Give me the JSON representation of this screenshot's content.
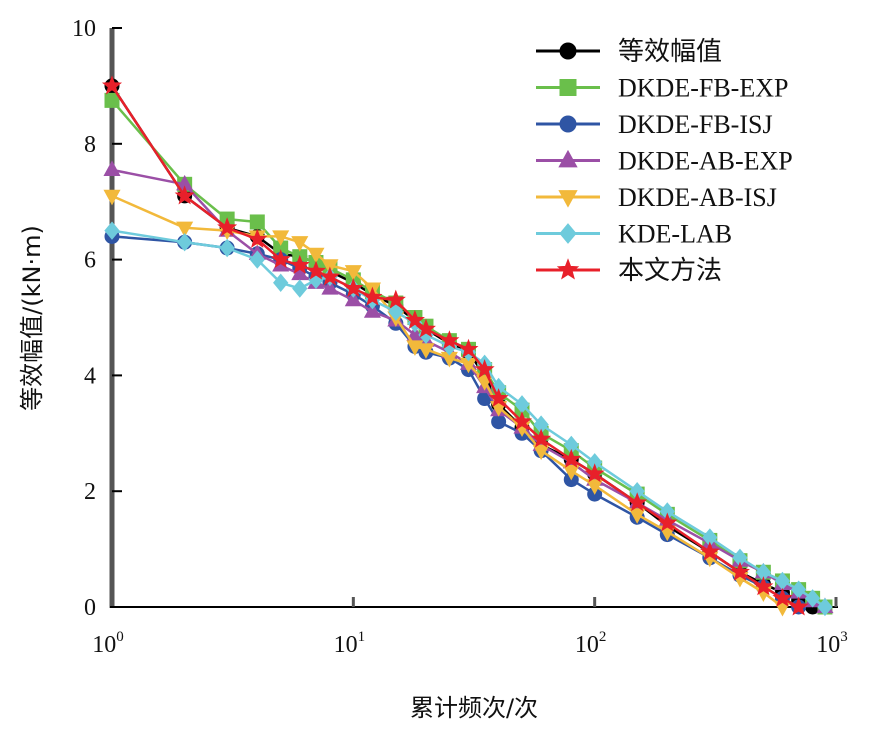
{
  "chart_data": {
    "type": "line",
    "title": "",
    "xlabel": "累计频次/次",
    "ylabel": "等效幅值/(kN·m)",
    "xscale": "log",
    "xlim": [
      1,
      1000
    ],
    "ylim": [
      0,
      10
    ],
    "x_ticks": [
      {
        "base": "10",
        "exp": "0"
      },
      {
        "base": "10",
        "exp": "1"
      },
      {
        "base": "10",
        "exp": "2"
      },
      {
        "base": "10",
        "exp": "3"
      }
    ],
    "x_tick_values": [
      1,
      10,
      100,
      1000
    ],
    "y_ticks": [
      "0",
      "2",
      "4",
      "6",
      "8",
      "10"
    ],
    "y_tick_values": [
      0,
      2,
      4,
      6,
      8,
      10
    ],
    "grid": false,
    "legend_position": "top-right",
    "series": [
      {
        "name": "等效幅值",
        "color": "#000000",
        "marker": "circle",
        "x": [
          1,
          2,
          3,
          4,
          5,
          6,
          7,
          8,
          10,
          12,
          15,
          18,
          20,
          25,
          30,
          35,
          40,
          50,
          60,
          80,
          100,
          150,
          200,
          300,
          400,
          500,
          600,
          700,
          800
        ],
        "y": [
          9.0,
          7.1,
          6.55,
          6.4,
          6.1,
          6.05,
          5.95,
          5.8,
          5.6,
          5.4,
          5.2,
          4.95,
          4.8,
          4.55,
          4.4,
          4.0,
          3.5,
          3.1,
          2.8,
          2.55,
          2.3,
          1.8,
          1.4,
          0.95,
          0.6,
          0.4,
          0.25,
          0.12,
          0.0
        ]
      },
      {
        "name": "DKDE-FB-EXP",
        "color": "#6abf4b",
        "marker": "square",
        "x": [
          1,
          2,
          3,
          4,
          5,
          6,
          7,
          8,
          10,
          12,
          15,
          18,
          20,
          25,
          30,
          35,
          40,
          50,
          60,
          80,
          100,
          150,
          200,
          300,
          400,
          500,
          600,
          700,
          800,
          900
        ],
        "y": [
          8.75,
          7.3,
          6.7,
          6.65,
          6.2,
          6.05,
          5.95,
          5.85,
          5.65,
          5.45,
          5.25,
          5.0,
          4.85,
          4.6,
          4.45,
          4.1,
          3.7,
          3.4,
          3.0,
          2.7,
          2.4,
          1.95,
          1.6,
          1.15,
          0.8,
          0.6,
          0.45,
          0.3,
          0.15,
          0.0
        ]
      },
      {
        "name": "DKDE-FB-ISJ",
        "color": "#2f55a4",
        "marker": "circle",
        "x": [
          1,
          2,
          3,
          4,
          5,
          6,
          7,
          8,
          10,
          12,
          15,
          18,
          20,
          25,
          30,
          35,
          40,
          50,
          60,
          80,
          100,
          150,
          200,
          300,
          400,
          500,
          600,
          700
        ],
        "y": [
          6.4,
          6.3,
          6.2,
          6.1,
          6.0,
          5.85,
          5.7,
          5.6,
          5.4,
          5.2,
          4.9,
          4.5,
          4.4,
          4.3,
          4.1,
          3.6,
          3.2,
          3.0,
          2.7,
          2.2,
          1.95,
          1.55,
          1.25,
          0.85,
          0.55,
          0.35,
          0.15,
          0.0
        ]
      },
      {
        "name": "DKDE-AB-EXP",
        "color": "#9b4fa6",
        "marker": "triangle-up",
        "x": [
          1,
          2,
          3,
          4,
          5,
          6,
          7,
          8,
          10,
          12,
          15,
          18,
          20,
          25,
          30,
          35,
          40,
          50,
          60,
          80,
          100,
          150,
          200,
          300,
          400,
          500,
          600,
          700,
          800,
          900
        ],
        "y": [
          7.55,
          7.3,
          6.5,
          6.1,
          5.9,
          5.75,
          5.6,
          5.5,
          5.3,
          5.1,
          4.95,
          4.7,
          4.6,
          4.4,
          4.2,
          3.8,
          3.4,
          3.1,
          2.8,
          2.5,
          2.2,
          1.8,
          1.5,
          1.1,
          0.8,
          0.6,
          0.4,
          0.25,
          0.1,
          0.0
        ]
      },
      {
        "name": "DKDE-AB-ISJ",
        "color": "#f2b93b",
        "marker": "triangle-down",
        "x": [
          1,
          2,
          3,
          4,
          5,
          6,
          7,
          8,
          10,
          12,
          15,
          18,
          20,
          25,
          30,
          35,
          40,
          50,
          60,
          80,
          100,
          150,
          200,
          300,
          400,
          500,
          600
        ],
        "y": [
          7.1,
          6.55,
          6.5,
          6.4,
          6.4,
          6.3,
          6.1,
          5.9,
          5.8,
          5.5,
          5.0,
          4.5,
          4.45,
          4.3,
          4.2,
          3.9,
          3.45,
          3.1,
          2.7,
          2.35,
          2.1,
          1.6,
          1.3,
          0.85,
          0.5,
          0.25,
          0.0
        ]
      },
      {
        "name": "KDE-LAB",
        "color": "#6ecbdc",
        "marker": "diamond",
        "x": [
          1,
          2,
          3,
          4,
          5,
          6,
          7,
          8,
          10,
          12,
          15,
          18,
          20,
          25,
          30,
          35,
          40,
          50,
          60,
          80,
          100,
          150,
          200,
          300,
          400,
          500,
          600,
          700,
          800,
          900
        ],
        "y": [
          6.5,
          6.3,
          6.2,
          6.0,
          5.6,
          5.5,
          5.65,
          5.7,
          5.5,
          5.3,
          5.1,
          4.9,
          4.7,
          4.5,
          4.4,
          4.2,
          3.8,
          3.5,
          3.15,
          2.8,
          2.5,
          2.0,
          1.65,
          1.2,
          0.85,
          0.6,
          0.45,
          0.3,
          0.15,
          0.0
        ]
      },
      {
        "name": "本文方法",
        "color": "#e8202a",
        "marker": "star",
        "x": [
          1,
          2,
          3,
          4,
          5,
          6,
          7,
          8,
          10,
          12,
          15,
          18,
          20,
          25,
          30,
          35,
          40,
          50,
          60,
          80,
          100,
          150,
          200,
          300,
          400,
          500,
          600,
          700
        ],
        "y": [
          9.0,
          7.1,
          6.55,
          6.35,
          6.0,
          5.9,
          5.8,
          5.7,
          5.5,
          5.35,
          5.3,
          4.95,
          4.8,
          4.6,
          4.45,
          4.1,
          3.6,
          3.2,
          2.9,
          2.55,
          2.3,
          1.8,
          1.45,
          0.95,
          0.6,
          0.35,
          0.15,
          0.0
        ]
      }
    ]
  }
}
